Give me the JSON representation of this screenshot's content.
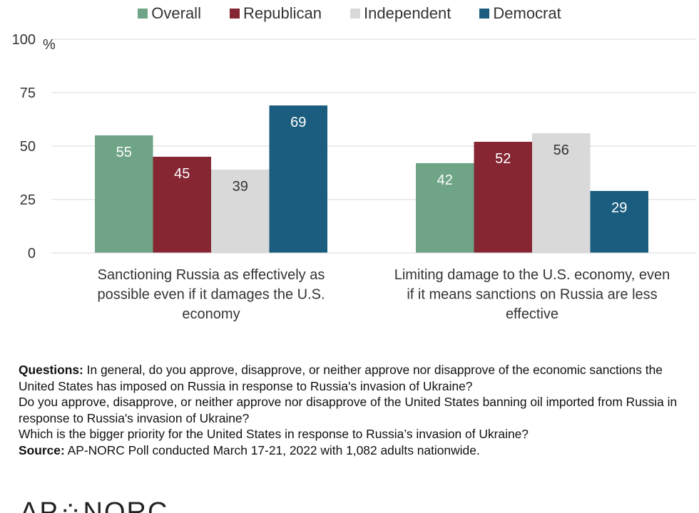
{
  "chart_data": {
    "type": "bar",
    "categories": [
      [
        "Sanctioning Russia as effectively as",
        "possible even if it damages the U.S.",
        "economy"
      ],
      [
        "Limiting damage to the U.S. economy, even",
        "if it means sanctions on Russia are less",
        "effective"
      ]
    ],
    "series": [
      {
        "name": "Overall",
        "values": [
          55,
          42
        ],
        "color": "#6fa487",
        "label_color": "#ffffff"
      },
      {
        "name": "Republican",
        "values": [
          45,
          52
        ],
        "color": "#862633",
        "label_color": "#ffffff"
      },
      {
        "name": "Independent",
        "values": [
          39,
          56
        ],
        "color": "#d9d9d9",
        "label_color": "#333333"
      },
      {
        "name": "Democrat",
        "values": [
          69,
          29
        ],
        "color": "#1a5d7e",
        "label_color": "#ffffff"
      }
    ],
    "ylim": [
      0,
      100
    ],
    "yticks": [
      "0",
      "25",
      "50",
      "75",
      "100"
    ],
    "yunit": "%",
    "grid": true,
    "legend_position": "top"
  },
  "notes": {
    "questions_label": "Questions:",
    "questions_lines": [
      "In general, do you approve, disapprove, or neither approve nor disapprove of the economic sanctions the United States has imposed on Russia in response to Russia's invasion of Ukraine?",
      "Do you approve, disapprove, or neither approve nor disapprove of the United States banning oil imported from Russia in response to Russia's invasion of Ukraine?",
      "Which is the bigger priority for the United States in response to Russia’s invasion of Ukraine?"
    ],
    "source_label": "Source:",
    "source_text": "AP-NORC Poll conducted March 17-21, 2022 with 1,082 adults nationwide."
  },
  "logo": {
    "text": "AP⁘NORC"
  }
}
